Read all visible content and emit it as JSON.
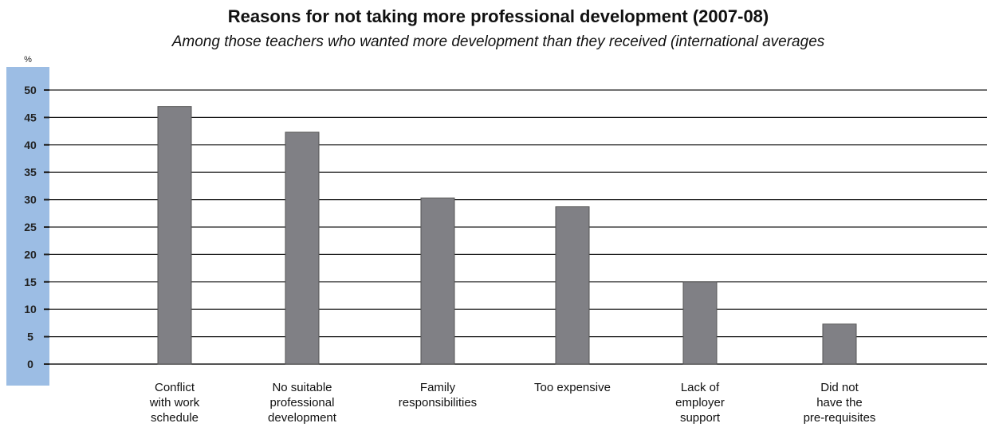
{
  "chart_data": {
    "type": "bar",
    "title": "Reasons for not taking more professional development  (2007-08)",
    "subtitle": "Among those teachers who wanted more development than they received (international averages",
    "ylabel": "%",
    "xlabel": "",
    "ylim": [
      0,
      50
    ],
    "yticks": [
      "0",
      "5",
      "10",
      "15",
      "20",
      "25",
      "30",
      "35",
      "40",
      "45",
      "50"
    ],
    "grid": true,
    "categories": [
      [
        "Conflict",
        "with work",
        "schedule"
      ],
      [
        "No suitable",
        "professional",
        "development"
      ],
      [
        "Family",
        "responsibilities"
      ],
      [
        "Too expensive"
      ],
      [
        "Lack of",
        "employer",
        "support"
      ],
      [
        "Did not",
        "have the",
        "pre-requisites"
      ]
    ],
    "values": [
      47,
      42.3,
      30.3,
      28.7,
      15,
      7.3
    ],
    "colors": {
      "bar": "#808085",
      "bar_edge": "#555555",
      "axis_panel": "#9cbde4",
      "gridline": "#1a1a1a"
    }
  }
}
